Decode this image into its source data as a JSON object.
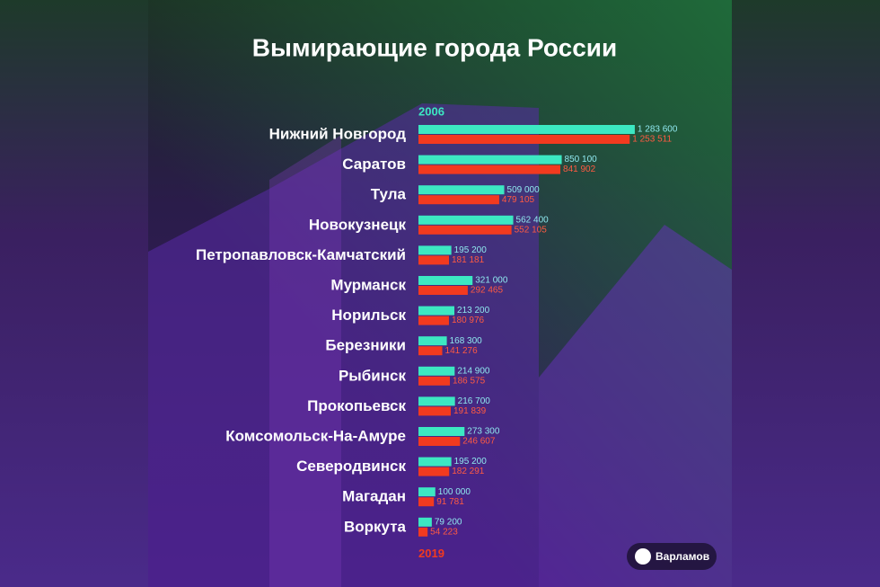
{
  "chart_data": {
    "type": "bar",
    "orientation": "horizontal",
    "title": "Вымирающие города России",
    "categories": [
      "Нижний Новгород",
      "Саратов",
      "Тула",
      "Новокузнецк",
      "Петропавловск-Камчатский",
      "Мурманск",
      "Норильск",
      "Березники",
      "Рыбинск",
      "Прокопьевск",
      "Комсомольск-На-Амуре",
      "Северодвинск",
      "Магадан",
      "Воркута"
    ],
    "series": [
      {
        "name": "2006",
        "color": "#3ce8c2",
        "label_color": "#8fe8ee",
        "values": [
          1283600,
          850100,
          509000,
          562400,
          195200,
          321000,
          213200,
          168300,
          214900,
          216700,
          273300,
          195200,
          100000,
          79200
        ],
        "value_labels": [
          "1 283 600",
          "850 100",
          "509 000",
          "562 400",
          "195 200",
          "321 000",
          "213 200",
          "168 300",
          "214 900",
          "216 700",
          "273 300",
          "195 200",
          "100 000",
          "79 200"
        ]
      },
      {
        "name": "2019",
        "color": "#f23a1f",
        "label_color": "#ff5a42",
        "values": [
          1253511,
          841902,
          479105,
          552105,
          181181,
          292465,
          180976,
          141276,
          186575,
          191839,
          246607,
          182291,
          91781,
          54223
        ],
        "value_labels": [
          "1 253 511",
          "841 902",
          "479 105",
          "552 105",
          "181 181",
          "292 465",
          "180 976",
          "141 276",
          "186 575",
          "191 839",
          "246 607",
          "182 291",
          "91 781",
          "54 223"
        ]
      }
    ],
    "xlim": [
      0,
      1300000
    ]
  },
  "logo": "Варламов"
}
